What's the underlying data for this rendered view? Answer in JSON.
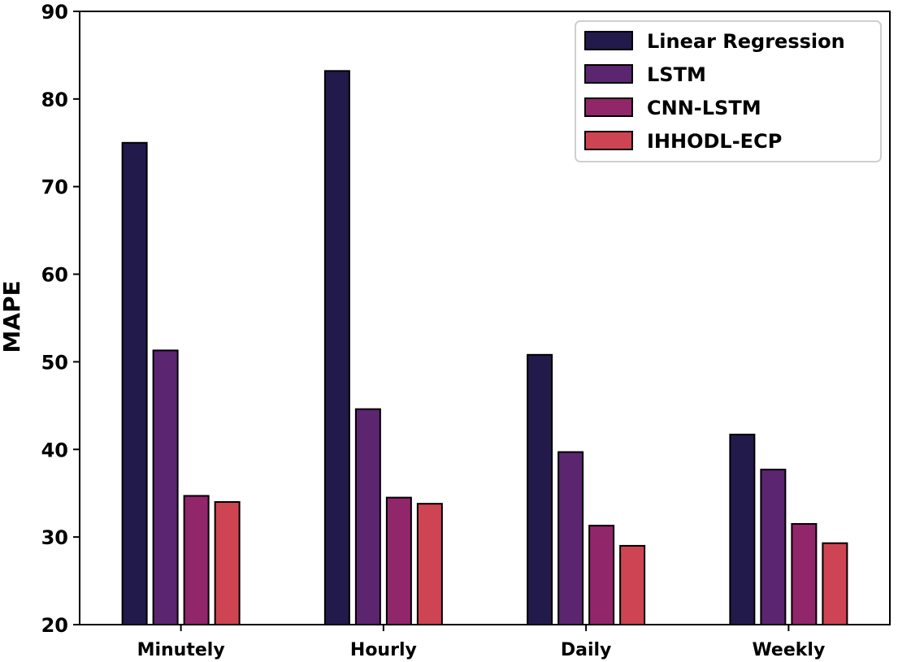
{
  "chart_data": {
    "type": "bar",
    "title": "",
    "xlabel": "",
    "ylabel": "MAPE",
    "ylim": [
      20,
      90
    ],
    "yticks": [
      20,
      30,
      40,
      50,
      60,
      70,
      80,
      90
    ],
    "categories": [
      "Minutely",
      "Hourly",
      "Daily",
      "Weekly"
    ],
    "grid": false,
    "legend_position": "top-right",
    "series": [
      {
        "name": "Linear Regression",
        "color": "#221a4a",
        "values": [
          75.0,
          83.2,
          50.8,
          41.7
        ]
      },
      {
        "name": "LSTM",
        "color": "#5b2570",
        "values": [
          51.3,
          44.6,
          39.7,
          37.7
        ]
      },
      {
        "name": "CNN-LSTM",
        "color": "#92266b",
        "values": [
          34.7,
          34.5,
          31.3,
          31.5
        ]
      },
      {
        "name": "IHHODL-ECP",
        "color": "#cf4452",
        "values": [
          34.0,
          33.8,
          29.0,
          29.3
        ]
      }
    ]
  }
}
